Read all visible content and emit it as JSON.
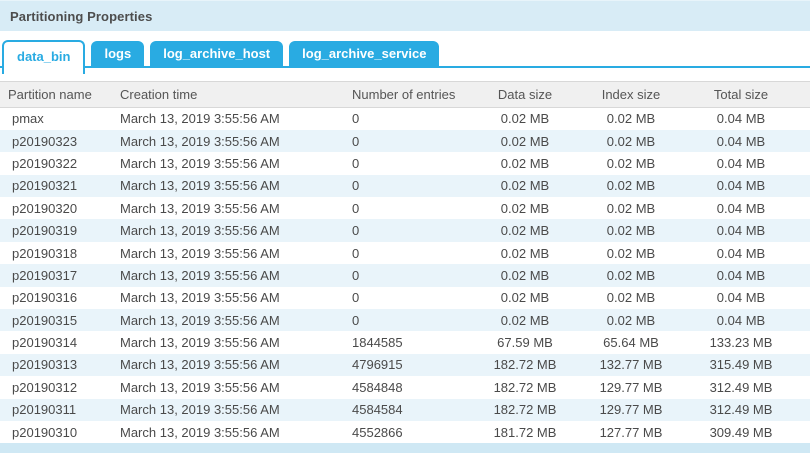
{
  "panel": {
    "title": "Partitioning Properties"
  },
  "tabs": [
    {
      "label": "data_bin",
      "active": true
    },
    {
      "label": "logs",
      "active": false
    },
    {
      "label": "log_archive_host",
      "active": false
    },
    {
      "label": "log_archive_service",
      "active": false
    }
  ],
  "table": {
    "columns": [
      "Partition name",
      "Creation time",
      "Number of entries",
      "Data size",
      "Index size",
      "Total size"
    ],
    "rows": [
      [
        "pmax",
        "March 13, 2019 3:55:56 AM",
        "0",
        "0.02 MB",
        "0.02 MB",
        "0.04 MB"
      ],
      [
        "p20190323",
        "March 13, 2019 3:55:56 AM",
        "0",
        "0.02 MB",
        "0.02 MB",
        "0.04 MB"
      ],
      [
        "p20190322",
        "March 13, 2019 3:55:56 AM",
        "0",
        "0.02 MB",
        "0.02 MB",
        "0.04 MB"
      ],
      [
        "p20190321",
        "March 13, 2019 3:55:56 AM",
        "0",
        "0.02 MB",
        "0.02 MB",
        "0.04 MB"
      ],
      [
        "p20190320",
        "March 13, 2019 3:55:56 AM",
        "0",
        "0.02 MB",
        "0.02 MB",
        "0.04 MB"
      ],
      [
        "p20190319",
        "March 13, 2019 3:55:56 AM",
        "0",
        "0.02 MB",
        "0.02 MB",
        "0.04 MB"
      ],
      [
        "p20190318",
        "March 13, 2019 3:55:56 AM",
        "0",
        "0.02 MB",
        "0.02 MB",
        "0.04 MB"
      ],
      [
        "p20190317",
        "March 13, 2019 3:55:56 AM",
        "0",
        "0.02 MB",
        "0.02 MB",
        "0.04 MB"
      ],
      [
        "p20190316",
        "March 13, 2019 3:55:56 AM",
        "0",
        "0.02 MB",
        "0.02 MB",
        "0.04 MB"
      ],
      [
        "p20190315",
        "March 13, 2019 3:55:56 AM",
        "0",
        "0.02 MB",
        "0.02 MB",
        "0.04 MB"
      ],
      [
        "p20190314",
        "March 13, 2019 3:55:56 AM",
        "1844585",
        "67.59 MB",
        "65.64 MB",
        "133.23 MB"
      ],
      [
        "p20190313",
        "March 13, 2019 3:55:56 AM",
        "4796915",
        "182.72 MB",
        "132.77 MB",
        "315.49 MB"
      ],
      [
        "p20190312",
        "March 13, 2019 3:55:56 AM",
        "4584848",
        "182.72 MB",
        "129.77 MB",
        "312.49 MB"
      ],
      [
        "p20190311",
        "March 13, 2019 3:55:56 AM",
        "4584584",
        "182.72 MB",
        "129.77 MB",
        "312.49 MB"
      ],
      [
        "p20190310",
        "March 13, 2019 3:55:56 AM",
        "4552866",
        "181.72 MB",
        "127.77 MB",
        "309.49 MB"
      ]
    ]
  },
  "colors": {
    "accent_blue": "#29abe2",
    "title_bar_bg": "#d8ecf6",
    "row_stripe": "#e9f4fa",
    "partial_row": "#cfe8f4",
    "header_row_bg": "#f0f0f0",
    "text": "#4a4a4a"
  }
}
